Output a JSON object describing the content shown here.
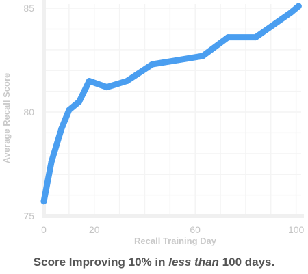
{
  "chart_data": {
    "type": "line",
    "title": "",
    "xlabel": "Recall Training Day",
    "ylabel": "Average Recall Score",
    "xlim": [
      0,
      102
    ],
    "ylim": [
      75,
      85.2
    ],
    "xticks": [
      "0",
      "20",
      "60",
      "100"
    ],
    "yticks": [
      "75",
      "80",
      "85"
    ],
    "grid": true,
    "legend": "none",
    "line_color": "#4a9ef0",
    "series": [
      {
        "x": [
          0,
          3,
          7,
          10,
          14,
          18,
          25,
          33,
          43,
          53,
          63,
          73,
          84,
          98,
          101
        ],
        "y": [
          75.7,
          77.6,
          79.2,
          80.1,
          80.5,
          81.5,
          81.2,
          81.5,
          82.3,
          82.5,
          82.7,
          83.6,
          83.6,
          84.8,
          85.1
        ]
      }
    ]
  },
  "caption": {
    "before": "Score Improving 10% in ",
    "emphasis": "less than",
    "after": " 100 days."
  }
}
